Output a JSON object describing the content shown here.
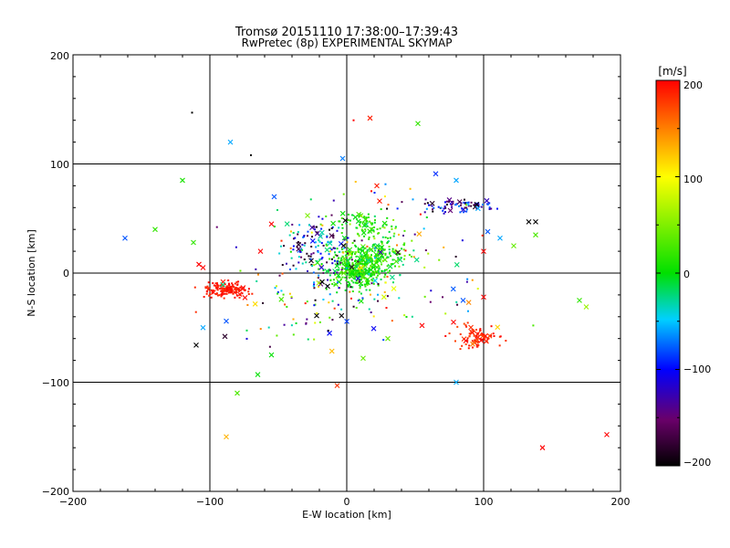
{
  "chart_data": {
    "type": "scatter",
    "title": "Tromsø 20151110 17:38:00–17:39:43",
    "subtitle": "RwPretec (8p) EXPERIMENTAL SKYMAP",
    "xlabel": "E-W location [km]",
    "ylabel": "N-S location [km]",
    "xlim": [
      -200,
      200
    ],
    "ylim": [
      -200,
      200
    ],
    "x_ticks": [
      "−200",
      "−100",
      "0",
      "100",
      "200"
    ],
    "y_ticks": [
      "−200",
      "−100",
      "0",
      "100",
      "200"
    ],
    "grid": true,
    "colorbar": {
      "label": "[m/s]",
      "range": [
        -200,
        200
      ],
      "ticks": [
        "200",
        "100",
        "0",
        "−100",
        "−200"
      ],
      "colormap": "black-purple-blue-cyan-green-yellow-red"
    },
    "points": [
      {
        "x": -113,
        "y": 147,
        "v": -200,
        "m": "dot"
      },
      {
        "x": -85,
        "y": 120,
        "v": -60,
        "m": "x"
      },
      {
        "x": 5,
        "y": 140,
        "v": 200,
        "m": "dot"
      },
      {
        "x": 17,
        "y": 142,
        "v": 190,
        "m": "x"
      },
      {
        "x": 52,
        "y": 137,
        "v": 20,
        "m": "x"
      },
      {
        "x": -3,
        "y": 105,
        "v": -70,
        "m": "x"
      },
      {
        "x": -70,
        "y": 108,
        "v": -200,
        "m": "dot"
      },
      {
        "x": -120,
        "y": 85,
        "v": 10,
        "m": "x"
      },
      {
        "x": 65,
        "y": 91,
        "v": -90,
        "m": "x"
      },
      {
        "x": 80,
        "y": 85,
        "v": -60,
        "m": "x"
      },
      {
        "x": 22,
        "y": 80,
        "v": 190,
        "m": "x"
      },
      {
        "x": -162,
        "y": 32,
        "v": -80,
        "m": "x"
      },
      {
        "x": -140,
        "y": 40,
        "v": 20,
        "m": "x"
      },
      {
        "x": -112,
        "y": 28,
        "v": 20,
        "m": "x"
      },
      {
        "x": -108,
        "y": 8,
        "v": 200,
        "m": "x"
      },
      {
        "x": -110,
        "y": -66,
        "v": -200,
        "m": "x"
      },
      {
        "x": -105,
        "y": -50,
        "v": -60,
        "m": "x"
      },
      {
        "x": -88,
        "y": -44,
        "v": -80,
        "m": "x"
      },
      {
        "x": -89,
        "y": -58,
        "v": -180,
        "m": "x"
      },
      {
        "x": -7,
        "y": -103,
        "v": 180,
        "m": "x"
      },
      {
        "x": -80,
        "y": -110,
        "v": 30,
        "m": "x"
      },
      {
        "x": -55,
        "y": -75,
        "v": 0,
        "m": "x"
      },
      {
        "x": -65,
        "y": -93,
        "v": 0,
        "m": "x"
      },
      {
        "x": -88,
        "y": -150,
        "v": 130,
        "m": "x"
      },
      {
        "x": 80,
        "y": -100,
        "v": -60,
        "m": "x"
      },
      {
        "x": 143,
        "y": -160,
        "v": 200,
        "m": "x"
      },
      {
        "x": 190,
        "y": -148,
        "v": 200,
        "m": "x"
      },
      {
        "x": 170,
        "y": -25,
        "v": 20,
        "m": "x"
      },
      {
        "x": 175,
        "y": -31,
        "v": 60,
        "m": "x"
      },
      {
        "x": 122,
        "y": 25,
        "v": 40,
        "m": "x"
      },
      {
        "x": 138,
        "y": 35,
        "v": 30,
        "m": "x"
      },
      {
        "x": 112,
        "y": 32,
        "v": -60,
        "m": "x"
      },
      {
        "x": 138,
        "y": 47,
        "v": -200,
        "m": "x"
      },
      {
        "x": 103,
        "y": 38,
        "v": -80,
        "m": "x"
      },
      {
        "x": 100,
        "y": 20,
        "v": 200,
        "m": "x"
      },
      {
        "x": 55,
        "y": -48,
        "v": 200,
        "m": "x"
      },
      {
        "x": 85,
        "y": -25,
        "v": -80,
        "m": "x"
      },
      {
        "x": 100,
        "y": -22,
        "v": 200,
        "m": "x"
      },
      {
        "x": 78,
        "y": -45,
        "v": 200,
        "m": "x"
      },
      {
        "x": 87,
        "y": -62,
        "v": 200,
        "m": "x"
      },
      {
        "x": 92,
        "y": -65,
        "v": 150,
        "m": "x"
      },
      {
        "x": 30,
        "y": -60,
        "v": 40,
        "m": "x"
      },
      {
        "x": 12,
        "y": -78,
        "v": 40,
        "m": "x"
      },
      {
        "x": -22,
        "y": -39,
        "v": -200,
        "m": "x"
      },
      {
        "x": -14,
        "y": -12,
        "v": -200,
        "m": "x"
      },
      {
        "x": -18,
        "y": -8,
        "v": -200,
        "m": "x"
      },
      {
        "x": -53,
        "y": 70,
        "v": -80,
        "m": "x"
      },
      {
        "x": -55,
        "y": 45,
        "v": 200,
        "m": "x"
      },
      {
        "x": -63,
        "y": 20,
        "v": 200,
        "m": "x"
      },
      {
        "x": -105,
        "y": 5,
        "v": 200,
        "m": "x"
      },
      {
        "x": 24,
        "y": 66,
        "v": 190,
        "m": "x"
      },
      {
        "x": 95,
        "y": 63,
        "v": -200,
        "m": "x"
      },
      {
        "x": 133,
        "y": 47,
        "v": -200,
        "m": "x"
      },
      {
        "x": 75,
        "y": 67,
        "v": -140,
        "m": "x"
      }
    ],
    "clusters": [
      {
        "cx": 8,
        "cy": 5,
        "sx": 17,
        "sy": 16,
        "n": 360,
        "vmin": -20,
        "vmax": 40
      },
      {
        "cx": 25,
        "cy": 20,
        "sx": 18,
        "sy": 22,
        "n": 150,
        "vmin": -30,
        "vmax": 60
      },
      {
        "cx": -20,
        "cy": 25,
        "sx": 20,
        "sy": 22,
        "n": 110,
        "vmin": -200,
        "vmax": 0
      },
      {
        "cx": -88,
        "cy": -15,
        "sx": 13,
        "sy": 6,
        "n": 140,
        "vmin": 180,
        "vmax": 200
      },
      {
        "cx": 95,
        "cy": -58,
        "sx": 13,
        "sy": 9,
        "n": 80,
        "vmin": 170,
        "vmax": 200
      },
      {
        "cx": 80,
        "cy": 62,
        "sx": 24,
        "sy": 6,
        "n": 80,
        "vmin": -200,
        "vmax": -60
      },
      {
        "cx": 10,
        "cy": 45,
        "sx": 14,
        "sy": 8,
        "n": 55,
        "vmin": -10,
        "vmax": 30
      },
      {
        "cx": 0,
        "cy": 0,
        "sx": 70,
        "sy": 55,
        "n": 230,
        "vmin": -200,
        "vmax": 200
      }
    ]
  }
}
